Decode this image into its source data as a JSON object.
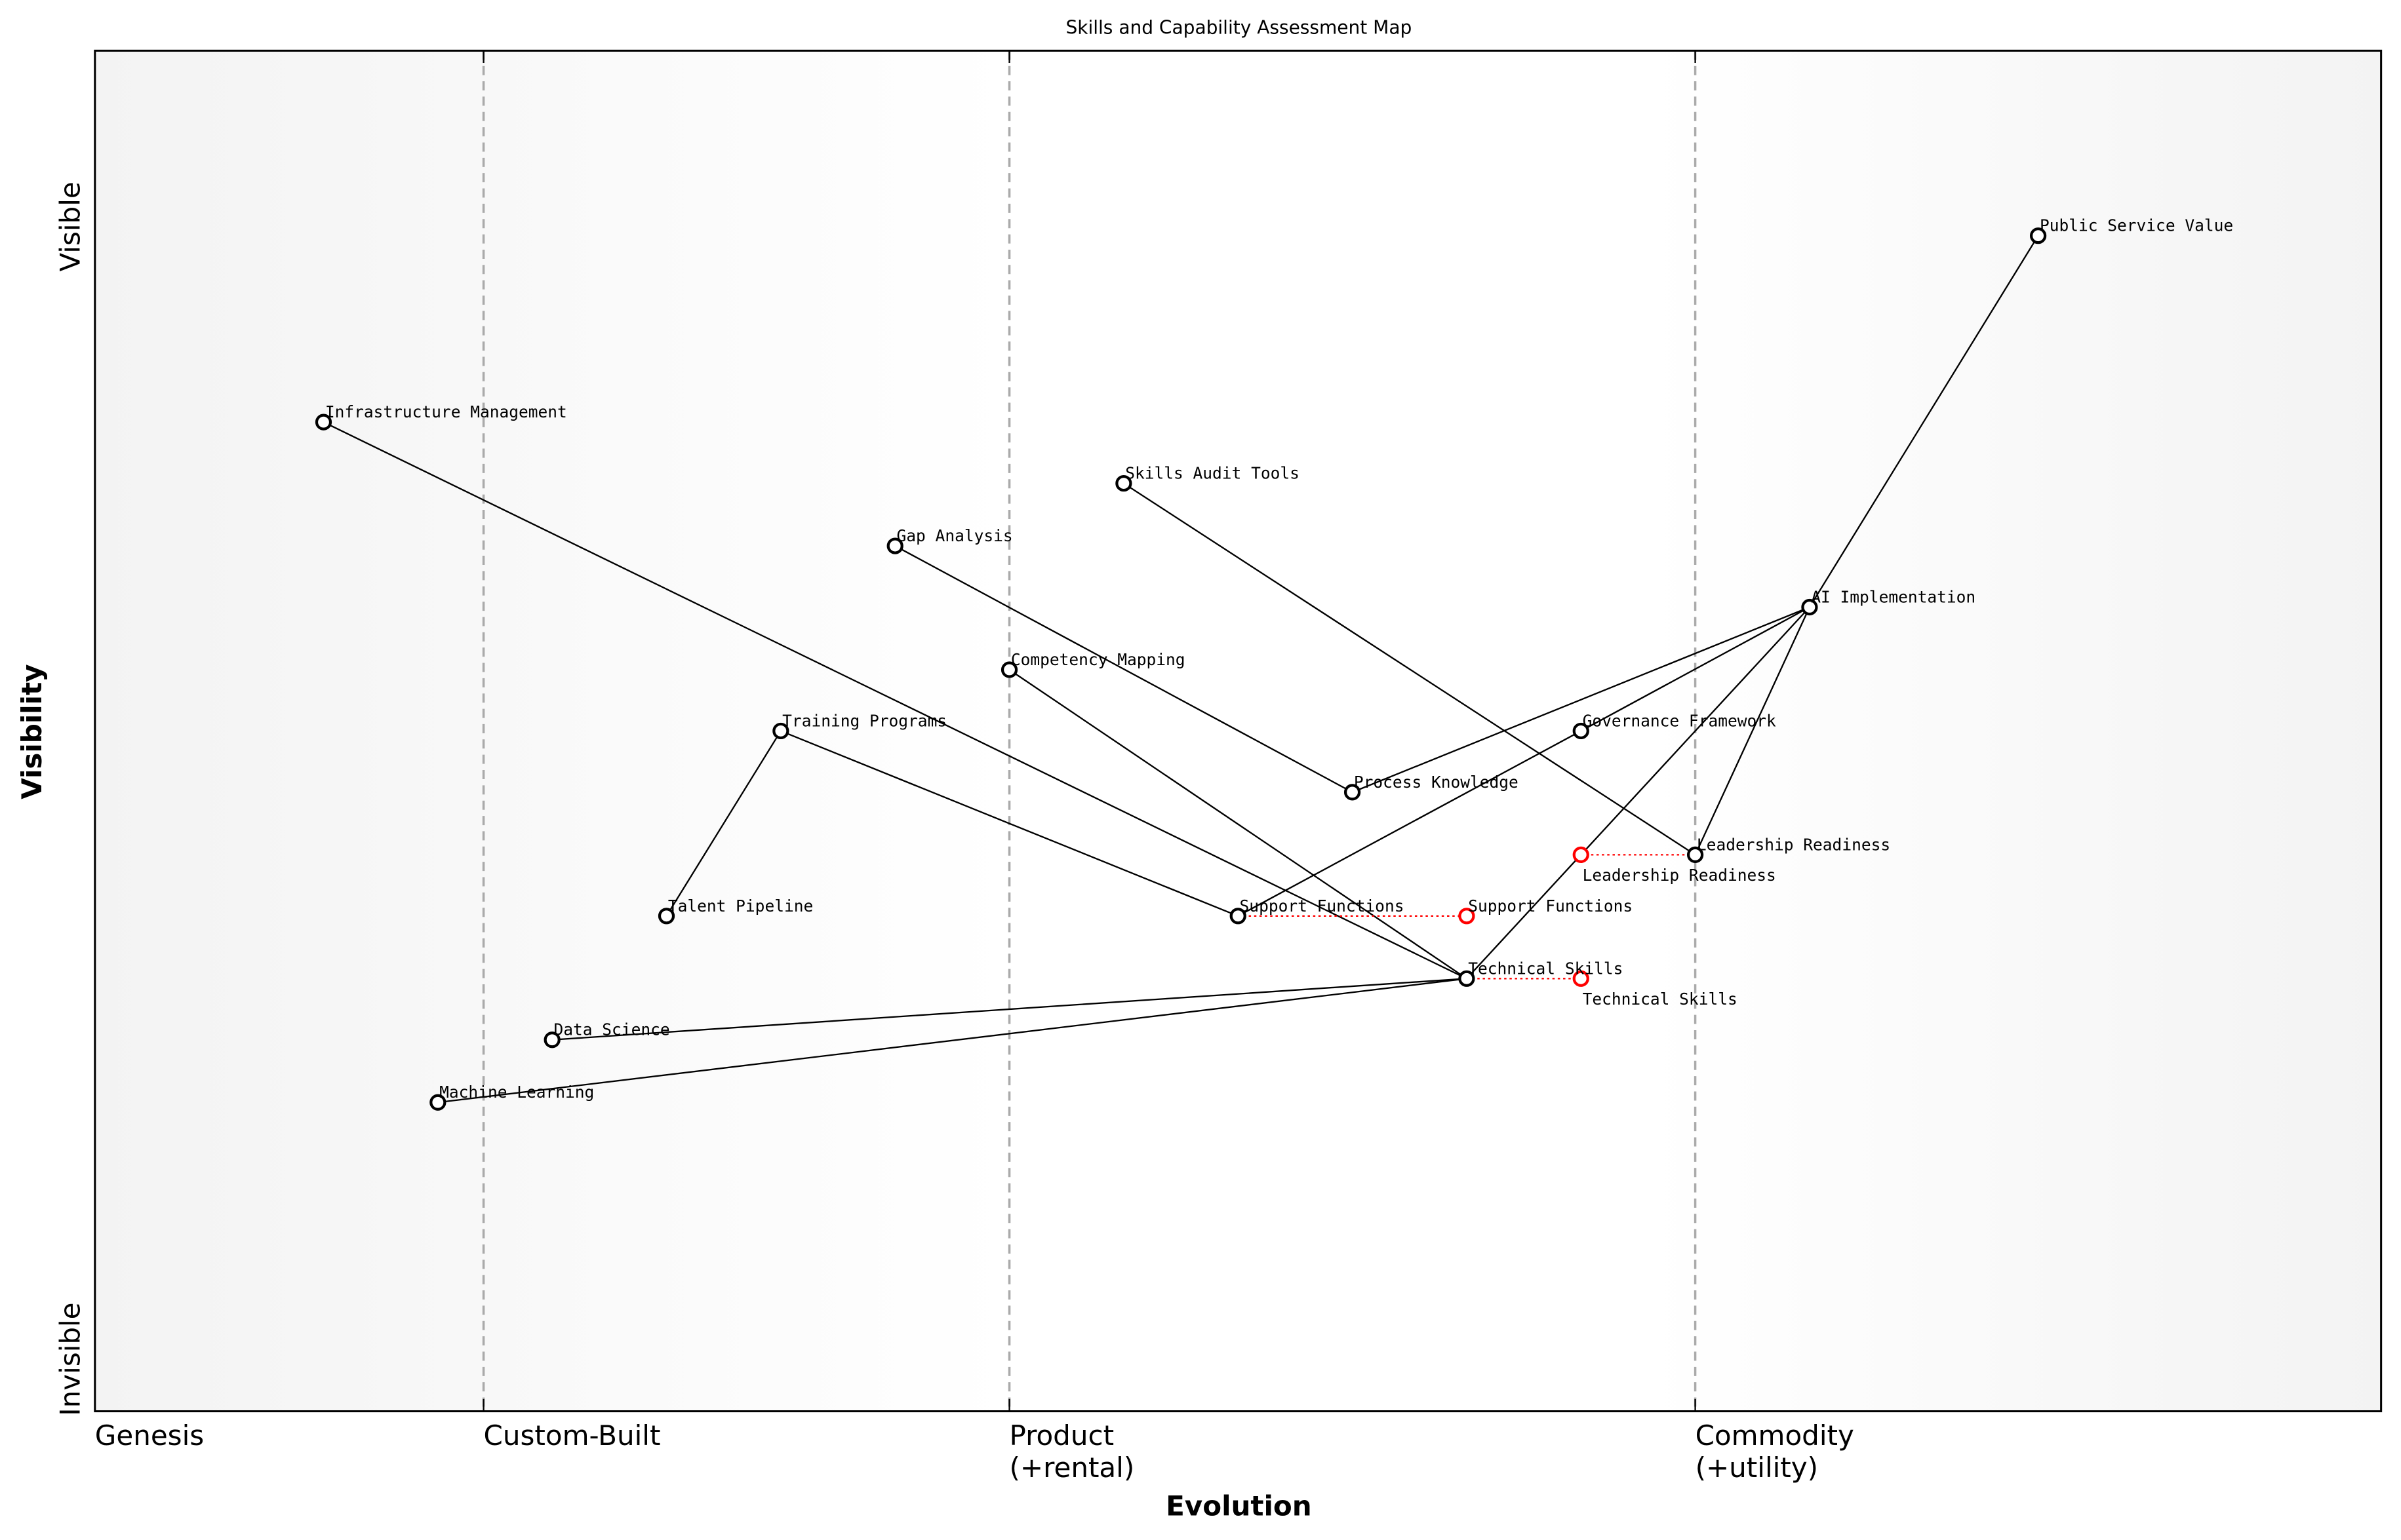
{
  "title": "Skills and Capability Assessment Map",
  "xlabel": "Evolution",
  "ylabel": "Visibility",
  "y_top_label": "Visible",
  "y_bottom_label": "Invisible",
  "stages": [
    {
      "label": "Genesis",
      "line2": "",
      "x": 0.0
    },
    {
      "label": "Custom-Built",
      "line2": "",
      "x": 0.17
    },
    {
      "label": "Product",
      "line2": "(+rental)",
      "x": 0.4
    },
    {
      "label": "Commodity",
      "line2": "(+utility)",
      "x": 0.7
    }
  ],
  "colors": {
    "node": "#000000",
    "evolved": "#ff0000",
    "divider": "#aaaaaa"
  },
  "components": [
    {
      "name": "Public Service Value",
      "evolution": 0.85,
      "visibility": 0.864
    },
    {
      "name": "Infrastructure Management",
      "evolution": 0.1,
      "visibility": 0.727
    },
    {
      "name": "Skills Audit Tools",
      "evolution": 0.45,
      "visibility": 0.682
    },
    {
      "name": "Gap Analysis",
      "evolution": 0.35,
      "visibility": 0.636
    },
    {
      "name": "AI Implementation",
      "evolution": 0.75,
      "visibility": 0.591
    },
    {
      "name": "Competency Mapping",
      "evolution": 0.4,
      "visibility": 0.545
    },
    {
      "name": "Training Programs",
      "evolution": 0.3,
      "visibility": 0.5
    },
    {
      "name": "Governance Framework",
      "evolution": 0.65,
      "visibility": 0.5
    },
    {
      "name": "Process Knowledge",
      "evolution": 0.55,
      "visibility": 0.455
    },
    {
      "name": "Leadership Readiness",
      "evolution": 0.7,
      "visibility": 0.409
    },
    {
      "name": "Talent Pipeline",
      "evolution": 0.25,
      "visibility": 0.364
    },
    {
      "name": "Support Functions",
      "evolution": 0.5,
      "visibility": 0.364
    },
    {
      "name": "Technical Skills",
      "evolution": 0.6,
      "visibility": 0.318
    },
    {
      "name": "Data Science",
      "evolution": 0.2,
      "visibility": 0.273
    },
    {
      "name": "Machine Learning",
      "evolution": 0.15,
      "visibility": 0.227
    }
  ],
  "evolved": [
    {
      "name": "Support Functions",
      "from": "Support Functions",
      "evolution": 0.6
    },
    {
      "name": "Technical Skills",
      "from": "Technical Skills",
      "evolution": 0.65
    },
    {
      "name": "Leadership Readiness",
      "from": "Leadership Readiness",
      "evolution": 0.65
    }
  ],
  "links": [
    [
      "Public Service Value",
      "AI Implementation"
    ],
    [
      "AI Implementation",
      "Process Knowledge"
    ],
    [
      "AI Implementation",
      "Governance Framework"
    ],
    [
      "AI Implementation",
      "Technical Skills"
    ],
    [
      "AI Implementation",
      "Leadership Readiness"
    ],
    [
      "Infrastructure Management",
      "Technical Skills"
    ],
    [
      "Skills Audit Tools",
      "Leadership Readiness"
    ],
    [
      "Gap Analysis",
      "Process Knowledge"
    ],
    [
      "Competency Mapping",
      "Technical Skills"
    ],
    [
      "Training Programs",
      "Talent Pipeline"
    ],
    [
      "Training Programs",
      "Support Functions"
    ],
    [
      "Governance Framework",
      "Support Functions"
    ],
    [
      "Technical Skills",
      "Data Science"
    ],
    [
      "Technical Skills",
      "Machine Learning"
    ]
  ]
}
